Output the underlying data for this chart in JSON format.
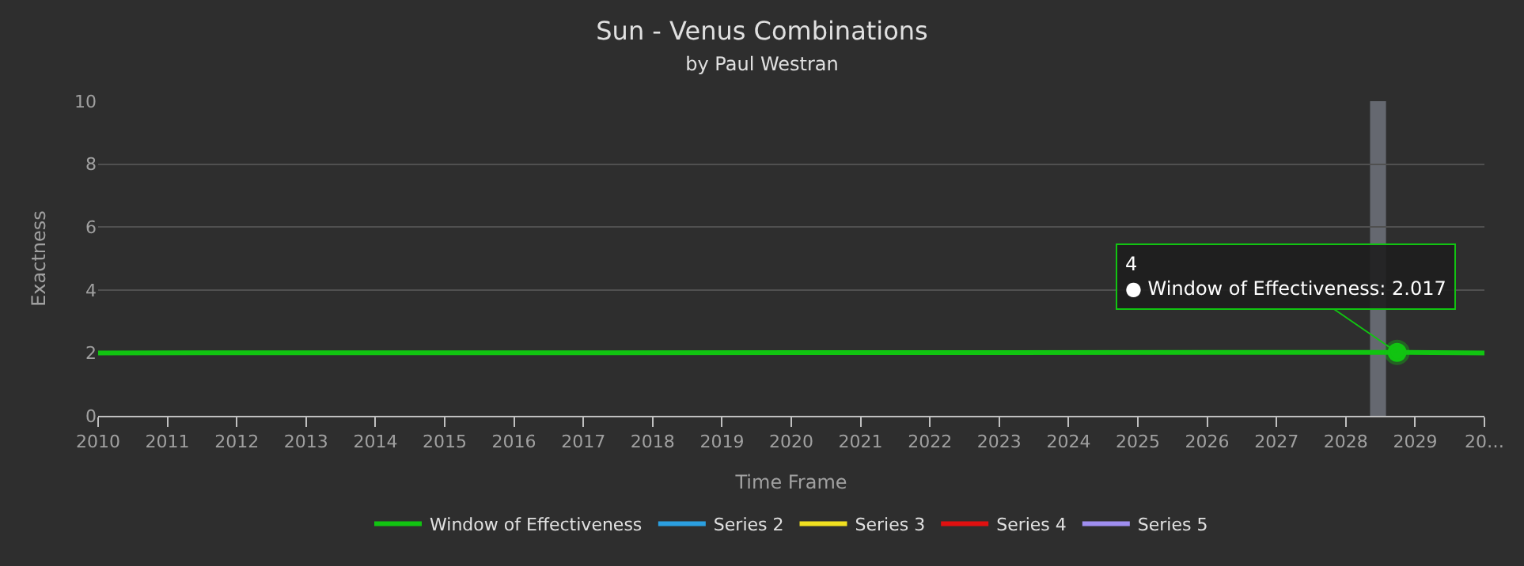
{
  "chart_data": {
    "type": "line",
    "title": "Sun - Venus Combinations",
    "subtitle": "by Paul Westran",
    "xlabel": "Time Frame",
    "ylabel": "Exactness",
    "xlim": [
      2010,
      2030
    ],
    "xticks": [
      2010,
      2011,
      2012,
      2013,
      2014,
      2015,
      2016,
      2017,
      2018,
      2019,
      2020,
      2021,
      2022,
      2023,
      2024,
      2025,
      2026,
      2027,
      2028,
      2029,
      {
        "value": 2030,
        "label": "20…"
      }
    ],
    "ylim": [
      0,
      10
    ],
    "yticks": [
      0,
      2,
      4,
      6,
      8,
      10
    ],
    "grid": "y",
    "legend": "bottom",
    "marker": "none",
    "line_style": "solid",
    "series": [
      {
        "name": "Window of Effectiveness",
        "color": "#11c411",
        "x": [
          2010,
          2028.7,
          2030
        ],
        "values": [
          2.0,
          2.017,
          2.0
        ]
      },
      {
        "name": "Series 2",
        "color": "#2b9fe0"
      },
      {
        "name": "Series 3",
        "color": "#f0e020"
      },
      {
        "name": "Series 4",
        "color": "#e01010"
      },
      {
        "name": "Series 5",
        "color": "#9f8ef0"
      }
    ],
    "bands": [
      {
        "axis": "x",
        "from": 2028.35,
        "to": 2028.58,
        "color": "#6b6f78"
      }
    ],
    "annotations": [
      {
        "text": "4\n● Window of Effectiveness: 2.017",
        "x": 2028.74,
        "y": 2.017
      }
    ]
  }
}
